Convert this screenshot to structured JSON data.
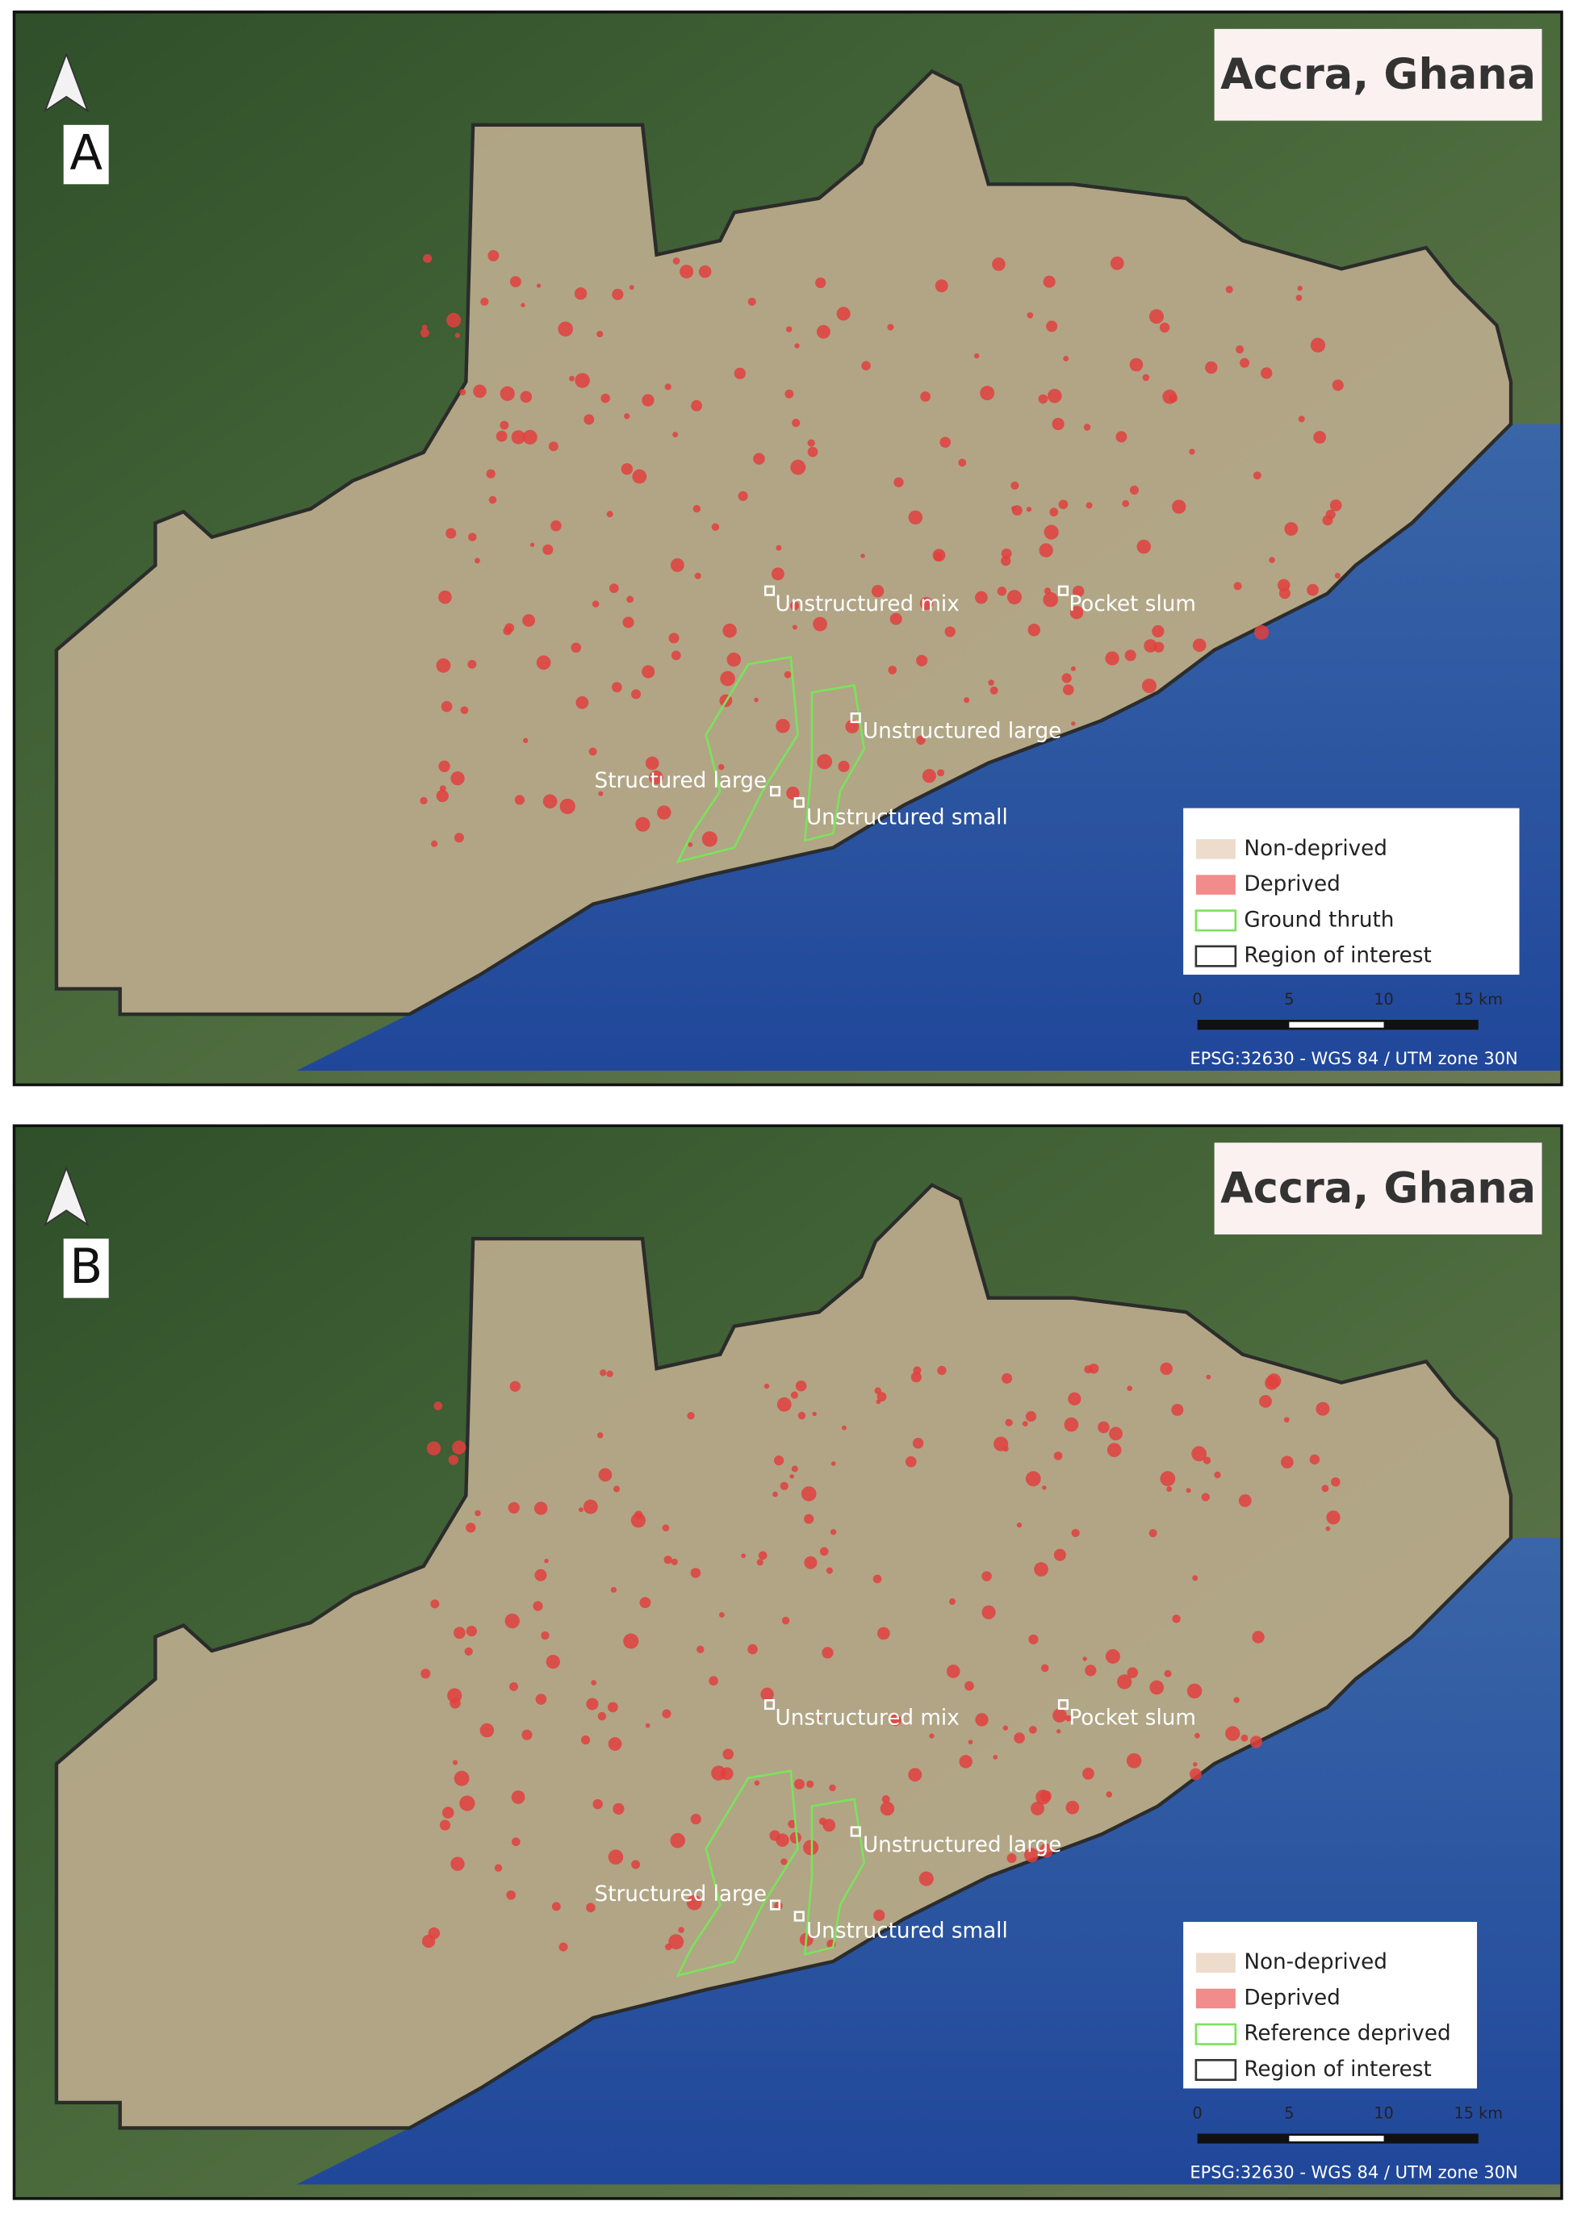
{
  "panels": [
    {
      "title": "Accra, Ghana",
      "label": "A",
      "sites": [
        "Unstructured mix",
        "Pocket slum",
        "Unstructured large",
        "Structured large",
        "Unstructured small"
      ],
      "legend": [
        "Non-deprived",
        "Deprived",
        "Ground thruth",
        "Region of interest"
      ],
      "scale": [
        "0",
        "5",
        "10",
        "15 km"
      ],
      "crs": "EPSG:32630 - WGS 84 / UTM zone 30N"
    },
    {
      "title": "Accra, Ghana",
      "label": "B",
      "sites": [
        "Unstructured mix",
        "Pocket slum",
        "Unstructured large",
        "Structured large",
        "Unstructured small"
      ],
      "legend": [
        "Non-deprived",
        "Deprived",
        "Reference deprived",
        "Region of interest"
      ],
      "scale": [
        "0",
        "5",
        "10",
        "15 km"
      ],
      "crs": "EPSG:32630 - WGS 84 / UTM zone 30N"
    }
  ]
}
